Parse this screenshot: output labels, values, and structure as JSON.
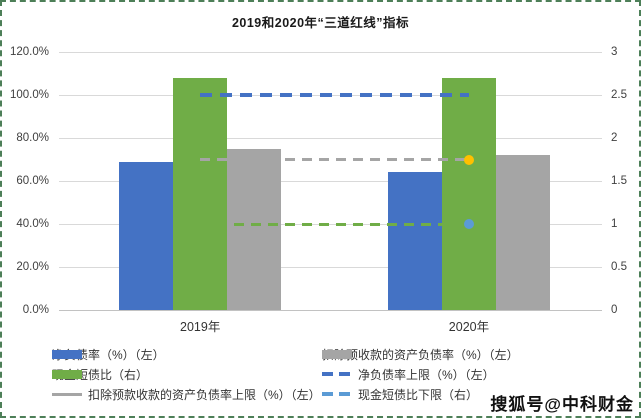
{
  "title": "2019和2020年“三道红线”指标",
  "watermark": "搜狐号@中科财金",
  "colors": {
    "bar_blue": "#4472C4",
    "bar_green": "#70AD47",
    "bar_gray": "#A5A5A5",
    "marker_orange": "#FFC000",
    "marker_lightblue": "#5B9BD5",
    "gridline": "#D9D9D9",
    "frame_border_green": "#4D7F58"
  },
  "chart_data": {
    "type": "bar",
    "title": "2019和2020年“三道红线”指标",
    "categories": [
      "2019年",
      "2020年"
    ],
    "axes": {
      "left": {
        "ticks": [
          "120.0%",
          "100.0%",
          "80.0%",
          "60.0%",
          "40.0%",
          "20.0%",
          "0.0%"
        ],
        "min": 0,
        "max": 1.2
      },
      "right": {
        "ticks": [
          "3",
          "2.5",
          "2",
          "1.5",
          "1",
          "0.5",
          "0"
        ],
        "min": 0,
        "max": 3
      }
    },
    "grid": true,
    "legend_position": "bottom",
    "bar_series": [
      {
        "name": "净负债率（%）（左）",
        "axis": "left",
        "color": "#4472C4",
        "values": [
          0.69,
          0.64
        ]
      },
      {
        "name": "现金短债比（右）",
        "axis": "right",
        "color": "#70AD47",
        "values": [
          2.7,
          2.7
        ]
      },
      {
        "name": "扣除预收款的资产负债率（%）（左）",
        "axis": "left",
        "color": "#A5A5A5",
        "values": [
          0.75,
          0.72
        ]
      }
    ],
    "line_series": [
      {
        "name": "净负债率上限（%）（左）",
        "axis": "left",
        "color": "#4472C4",
        "style": "dashed",
        "thickness": 4,
        "values": [
          1.0,
          1.0
        ],
        "end_marker_color": null
      },
      {
        "name": "扣除预款收款的资产负债率上限（%）（左）",
        "axis": "left",
        "color": "#A5A5A5",
        "style": "dashed",
        "thickness": 3,
        "values": [
          0.7,
          0.7
        ],
        "end_marker_color": "#FFC000"
      },
      {
        "name": "现金短债比下限（右）",
        "axis": "right",
        "color": "#70AD47",
        "style": "dashed",
        "thickness": 3,
        "values": [
          1.0,
          1.0
        ],
        "end_marker_color": "#5B9BD5"
      }
    ],
    "legend": {
      "columns": [
        {
          "items": [
            {
              "label": "净负债率（%）（左）",
              "swatch": "bar",
              "color": "#4472C4"
            },
            {
              "label": "现金短债比（右）",
              "swatch": "bar",
              "color": "#70AD47"
            },
            {
              "label": "扣除预款收款的资产负债率上限（%）（左）",
              "swatch": "line",
              "color": "#A5A5A5"
            }
          ]
        },
        {
          "items": [
            {
              "label": "扣除预收款的资产负债率（%）（左）",
              "swatch": "bar",
              "color": "#A5A5A5"
            },
            {
              "label": "净负债率上限（%）（左）",
              "swatch": "dash",
              "color": "#4472C4"
            },
            {
              "label": "现金短债比下限（右）",
              "swatch": "dash",
              "color": "#5B9BD5"
            }
          ]
        }
      ]
    }
  }
}
